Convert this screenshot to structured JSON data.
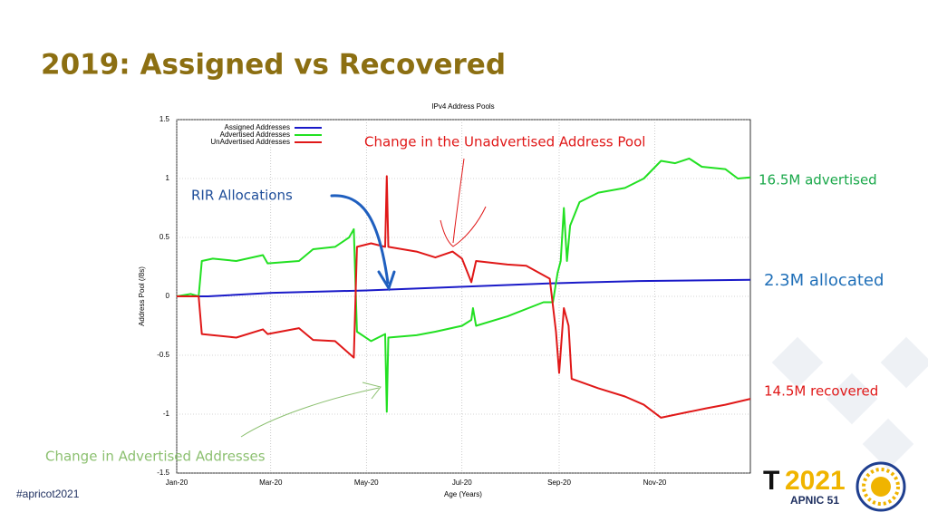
{
  "title": "2019: Assigned vs Recovered",
  "callouts": [
    "Change in the Unadvertised Address Pool",
    "RIR Allocations",
    "16.5M advertised",
    "2.3M allocated",
    "14.5M recovered",
    "Change in Advertised Addresses"
  ],
  "footer": "#apricot2021",
  "logo": {
    "mark": "T",
    "year": "2021",
    "event": "APNIC 51"
  },
  "chart_data": {
    "type": "line",
    "title": "IPv4 Address Pools",
    "xlabel": "Age (Years)",
    "ylabel": "Address Pool (/8s)",
    "xlim": [
      0,
      366
    ],
    "xticks": [
      {
        "value": 0,
        "label": "Jan-20"
      },
      {
        "value": 60,
        "label": "Mar-20"
      },
      {
        "value": 121,
        "label": "May-20"
      },
      {
        "value": 182,
        "label": "Jul-20"
      },
      {
        "value": 244,
        "label": "Sep-20"
      },
      {
        "value": 305,
        "label": "Nov-20"
      }
    ],
    "ylim": [
      -1.5,
      1.5
    ],
    "yticks": [
      -1.5,
      -1,
      -0.5,
      0,
      0.5,
      1,
      1.5
    ],
    "grid": true,
    "legend": "top-left",
    "series": [
      {
        "name": "Assigned Addresses",
        "color": "#1a1ac8",
        "x": [
          0,
          20,
          61,
          121,
          179,
          237,
          295,
          366
        ],
        "values": [
          0,
          0.0,
          0.03,
          0.05,
          0.08,
          0.11,
          0.13,
          0.14
        ]
      },
      {
        "name": "Advertised Addresses",
        "color": "#22e022",
        "x": [
          0,
          9,
          14,
          16,
          23,
          38,
          55,
          58,
          78,
          87,
          101,
          110,
          113,
          115,
          124,
          133,
          134,
          135,
          153,
          165,
          182,
          188,
          189,
          191,
          211,
          234,
          240,
          243,
          245,
          247,
          249,
          251,
          257,
          269,
          286,
          298,
          309,
          318,
          327,
          335,
          350,
          358,
          366
        ],
        "values": [
          0,
          0.02,
          0,
          0.3,
          0.32,
          0.3,
          0.35,
          0.28,
          0.3,
          0.4,
          0.42,
          0.5,
          0.57,
          -0.3,
          -0.38,
          -0.32,
          -0.98,
          -0.35,
          -0.33,
          -0.3,
          -0.25,
          -0.2,
          -0.1,
          -0.25,
          -0.17,
          -0.05,
          -0.05,
          0.2,
          0.3,
          0.75,
          0.3,
          0.6,
          0.8,
          0.88,
          0.92,
          1.0,
          1.15,
          1.13,
          1.17,
          1.1,
          1.08,
          1.0,
          1.01
        ]
      },
      {
        "name": "UnAdvertised Addresses",
        "color": "#e01818",
        "x": [
          0,
          14,
          16,
          38,
          55,
          58,
          78,
          87,
          101,
          113,
          115,
          124,
          133,
          134,
          135,
          153,
          165,
          176,
          182,
          188,
          191,
          211,
          223,
          238,
          242,
          244,
          247,
          250,
          252,
          269,
          286,
          298,
          309,
          327,
          338,
          350,
          366
        ],
        "values": [
          0,
          0,
          -0.32,
          -0.35,
          -0.28,
          -0.32,
          -0.27,
          -0.37,
          -0.38,
          -0.52,
          0.42,
          0.45,
          0.42,
          1.02,
          0.42,
          0.38,
          0.33,
          0.38,
          0.32,
          0.12,
          0.3,
          0.27,
          0.26,
          0.15,
          -0.3,
          -0.65,
          -0.1,
          -0.25,
          -0.7,
          -0.78,
          -0.85,
          -0.92,
          -1.03,
          -0.98,
          -0.95,
          -0.92,
          -0.87
        ]
      }
    ]
  }
}
